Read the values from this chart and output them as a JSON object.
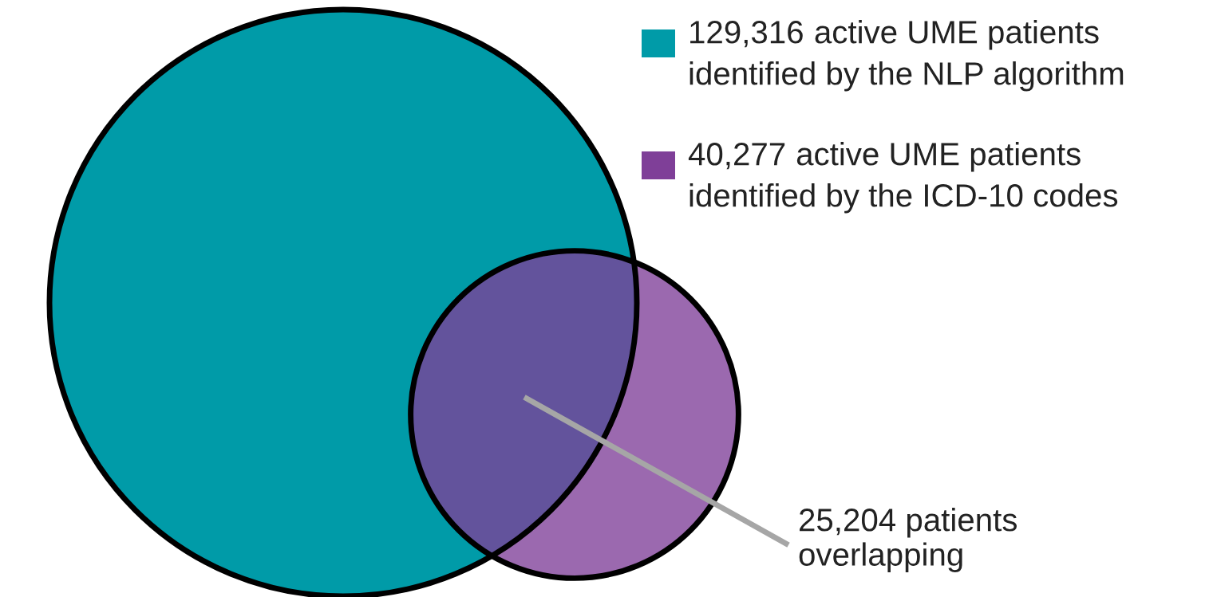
{
  "chart_data": {
    "type": "other",
    "categories": [
      "active UME patients\nidentified by the NLP algorithm",
      "active UME patients\nidentified by the ICD-10 codes"
    ],
    "values": [
      129316,
      40277
    ],
    "value_labels": [
      "129,316",
      "40,277"
    ],
    "colors": [
      "#009ba8",
      "#7f3f98"
    ],
    "annotations": [
      "25,204 patients\noverlapping"
    ]
  }
}
